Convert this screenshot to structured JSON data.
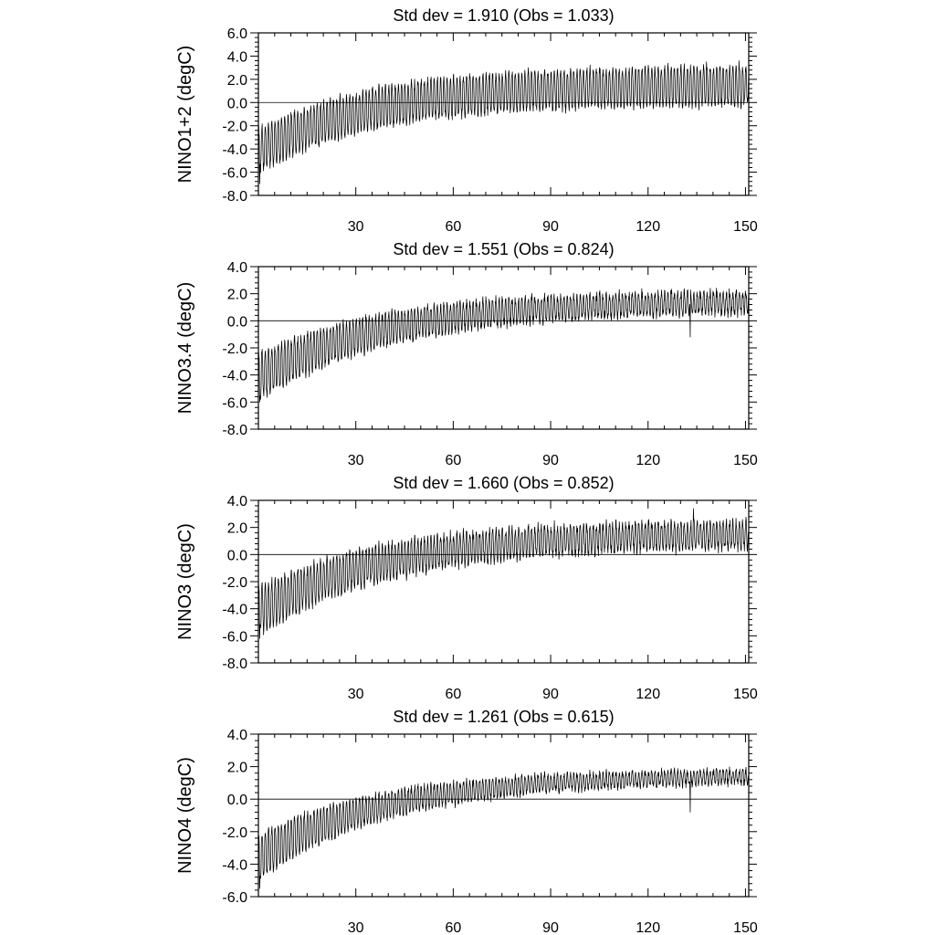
{
  "chart_data": [
    {
      "type": "line",
      "title": "Std dev = 1.910 (Obs = 1.033)",
      "ylabel": "NINO1+2 (degC)",
      "xlabel": "",
      "xlim": [
        0,
        151
      ],
      "ylim": [
        -8,
        6
      ],
      "xticks": [
        30,
        60,
        90,
        120,
        150
      ],
      "yticks": [
        6,
        4,
        2,
        0,
        -2,
        -4,
        -6,
        -8
      ],
      "ytick_labels": [
        "6.0",
        "4.0",
        "2.0",
        "0.0",
        "-2.0",
        "-4.0",
        "-6.0",
        "-8.0"
      ],
      "reference_line": 0,
      "grid": false,
      "trend": {
        "start": -4.2,
        "end": 1.5,
        "tau": 35
      },
      "amplitude": {
        "start": 1.8,
        "end": 1.6,
        "tau": 40
      },
      "noise": 0.5,
      "extremes": [
        [
          0.4,
          -7.0
        ],
        [
          148,
          3.6
        ],
        [
          138,
          3.5
        ]
      ]
    },
    {
      "type": "line",
      "title": "Std dev = 1.551 (Obs = 0.824)",
      "ylabel": "NINO3.4 (degC)",
      "xlabel": "",
      "xlim": [
        0,
        151
      ],
      "ylim": [
        -8,
        4
      ],
      "xticks": [
        30,
        60,
        90,
        120,
        150
      ],
      "yticks": [
        4,
        2,
        0,
        -2,
        -4,
        -6,
        -8
      ],
      "ytick_labels": [
        "4.0",
        "2.0",
        "0.0",
        "-2.0",
        "-4.0",
        "-6.0",
        "-8.0"
      ],
      "reference_line": 0,
      "grid": false,
      "trend": {
        "start": -4.2,
        "end": 1.5,
        "tau": 40
      },
      "amplitude": {
        "start": 1.7,
        "end": 0.7,
        "tau": 50
      },
      "noise": 0.45,
      "extremes": [
        [
          0.4,
          -6.0
        ],
        [
          133,
          -1.2
        ],
        [
          150,
          2.2
        ]
      ]
    },
    {
      "type": "line",
      "title": "Std dev = 1.660 (Obs = 0.852)",
      "ylabel": "NINO3 (degC)",
      "xlabel": "",
      "xlim": [
        0,
        151
      ],
      "ylim": [
        -8,
        4
      ],
      "xticks": [
        30,
        60,
        90,
        120,
        150
      ],
      "yticks": [
        4,
        2,
        0,
        -2,
        -4,
        -6,
        -8
      ],
      "ytick_labels": [
        "4.0",
        "2.0",
        "0.0",
        "-2.0",
        "-4.0",
        "-6.0",
        "-8.0"
      ],
      "reference_line": 0,
      "grid": false,
      "trend": {
        "start": -4.2,
        "end": 1.6,
        "tau": 40
      },
      "amplitude": {
        "start": 1.7,
        "end": 0.9,
        "tau": 50
      },
      "noise": 0.5,
      "extremes": [
        [
          0.4,
          -6.2
        ],
        [
          134,
          3.4
        ],
        [
          150,
          2.0
        ]
      ]
    },
    {
      "type": "line",
      "title": "Std dev = 1.261 (Obs = 0.615)",
      "ylabel": "NINO4 (degC)",
      "xlabel": "",
      "xlim": [
        0,
        151
      ],
      "ylim": [
        -6,
        4
      ],
      "xticks": [
        30,
        60,
        90,
        120,
        150
      ],
      "yticks": [
        4,
        2,
        0,
        -2,
        -4,
        -6
      ],
      "ytick_labels": [
        "4.0",
        "2.0",
        "0.0",
        "-2.0",
        "-4.0",
        "-6.0"
      ],
      "reference_line": 0,
      "grid": false,
      "trend": {
        "start": -3.6,
        "end": 1.5,
        "tau": 40
      },
      "amplitude": {
        "start": 1.4,
        "end": 0.35,
        "tau": 45
      },
      "noise": 0.3,
      "extremes": [
        [
          0.4,
          -5.5
        ],
        [
          133,
          -0.8
        ],
        [
          141,
          1.9
        ]
      ]
    }
  ]
}
